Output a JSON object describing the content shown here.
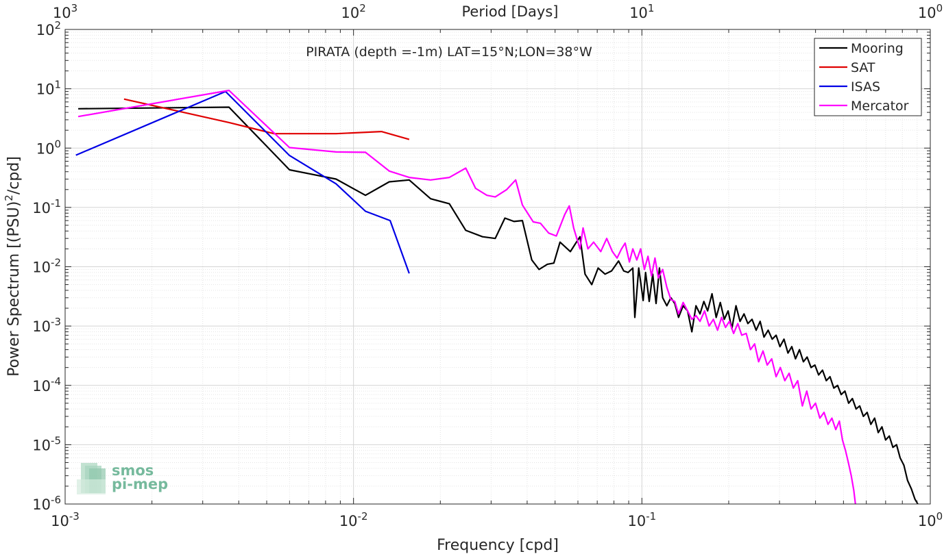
{
  "chart_data": {
    "type": "line",
    "title": "PIRATA (depth =-1m) LAT=15°N;LON=38°W",
    "xlabel": "Frequency [cpd]",
    "ylabel_main": "Power Spectrum [(PSU)",
    "ylabel_sup": "2",
    "ylabel_tail": "/cpd]",
    "x2label": "Period [Days]",
    "x_scale": "log",
    "y_scale": "log",
    "xlim": [
      0.001,
      1
    ],
    "ylim": [
      1e-06,
      100
    ],
    "grid": true,
    "legend_position": "top-right",
    "x_ticks": [
      {
        "value": 0.001,
        "base": "10",
        "exp": "-3"
      },
      {
        "value": 0.01,
        "base": "10",
        "exp": "-2"
      },
      {
        "value": 0.1,
        "base": "10",
        "exp": "-1"
      },
      {
        "value": 1,
        "base": "10",
        "exp": "0"
      }
    ],
    "y_ticks": [
      {
        "value": 1e-06,
        "base": "10",
        "exp": "-6"
      },
      {
        "value": 1e-05,
        "base": "10",
        "exp": "-5"
      },
      {
        "value": 0.0001,
        "base": "10",
        "exp": "-4"
      },
      {
        "value": 0.001,
        "base": "10",
        "exp": "-3"
      },
      {
        "value": 0.01,
        "base": "10",
        "exp": "-2"
      },
      {
        "value": 0.1,
        "base": "10",
        "exp": "-1"
      },
      {
        "value": 1,
        "base": "10",
        "exp": "0"
      },
      {
        "value": 10,
        "base": "10",
        "exp": "1"
      },
      {
        "value": 100,
        "base": "10",
        "exp": "2"
      }
    ],
    "x2_ticks": [
      {
        "value": 0.001,
        "base": "10",
        "exp": "3"
      },
      {
        "value": 0.01,
        "base": "10",
        "exp": "2"
      },
      {
        "value": 0.1,
        "base": "10",
        "exp": "1"
      },
      {
        "value": 1,
        "base": "10",
        "exp": "0"
      }
    ],
    "series": [
      {
        "name": "Mooring",
        "color": "#000000",
        "points": [
          [
            0.00111,
            4.6
          ],
          [
            0.0037,
            4.9
          ],
          [
            0.006,
            0.43
          ],
          [
            0.0087,
            0.3
          ],
          [
            0.011,
            0.16
          ],
          [
            0.0133,
            0.27
          ],
          [
            0.0156,
            0.29
          ],
          [
            0.0185,
            0.14
          ],
          [
            0.0215,
            0.115
          ],
          [
            0.0245,
            0.041
          ],
          [
            0.028,
            0.032
          ],
          [
            0.031,
            0.03
          ],
          [
            0.0335,
            0.066
          ],
          [
            0.036,
            0.058
          ],
          [
            0.0385,
            0.06
          ],
          [
            0.0415,
            0.013
          ],
          [
            0.044,
            0.009
          ],
          [
            0.047,
            0.011
          ],
          [
            0.0495,
            0.0115
          ],
          [
            0.052,
            0.026
          ],
          [
            0.0565,
            0.018
          ],
          [
            0.059,
            0.025
          ],
          [
            0.061,
            0.032
          ],
          [
            0.0635,
            0.0075
          ],
          [
            0.067,
            0.005
          ],
          [
            0.0705,
            0.0095
          ],
          [
            0.0745,
            0.0075
          ],
          [
            0.0785,
            0.0085
          ],
          [
            0.083,
            0.0125
          ],
          [
            0.0865,
            0.0085
          ],
          [
            0.0895,
            0.008
          ],
          [
            0.093,
            0.0095
          ],
          [
            0.0945,
            0.0014
          ],
          [
            0.0975,
            0.0095
          ],
          [
            0.101,
            0.0027
          ],
          [
            0.103,
            0.008
          ],
          [
            0.106,
            0.0026
          ],
          [
            0.109,
            0.0075
          ],
          [
            0.112,
            0.0024
          ],
          [
            0.115,
            0.0095
          ],
          [
            0.118,
            0.003
          ],
          [
            0.122,
            0.0022
          ],
          [
            0.126,
            0.003
          ],
          [
            0.13,
            0.0024
          ],
          [
            0.134,
            0.0014
          ],
          [
            0.139,
            0.0022
          ],
          [
            0.144,
            0.0018
          ],
          [
            0.149,
            0.0008
          ],
          [
            0.154,
            0.0022
          ],
          [
            0.159,
            0.0016
          ],
          [
            0.164,
            0.0026
          ],
          [
            0.169,
            0.0018
          ],
          [
            0.175,
            0.0035
          ],
          [
            0.181,
            0.0014
          ],
          [
            0.187,
            0.0025
          ],
          [
            0.193,
            0.0013
          ],
          [
            0.199,
            0.0018
          ],
          [
            0.205,
            0.0009
          ],
          [
            0.212,
            0.0022
          ],
          [
            0.219,
            0.0012
          ],
          [
            0.226,
            0.0016
          ],
          [
            0.233,
            0.0011
          ],
          [
            0.241,
            0.0013
          ],
          [
            0.249,
            0.00085
          ],
          [
            0.257,
            0.0012
          ],
          [
            0.265,
            0.00065
          ],
          [
            0.274,
            0.00085
          ],
          [
            0.283,
            0.0006
          ],
          [
            0.292,
            0.0007
          ],
          [
            0.301,
            0.00045
          ],
          [
            0.311,
            0.0006
          ],
          [
            0.321,
            0.00035
          ],
          [
            0.331,
            0.00045
          ],
          [
            0.341,
            0.00028
          ],
          [
            0.352,
            0.0004
          ],
          [
            0.363,
            0.00025
          ],
          [
            0.374,
            0.0003
          ],
          [
            0.386,
            0.0002
          ],
          [
            0.398,
            0.00022
          ],
          [
            0.41,
            0.00015
          ],
          [
            0.423,
            0.00018
          ],
          [
            0.436,
            0.00012
          ],
          [
            0.449,
            0.00014
          ],
          [
            0.463,
            9e-05
          ],
          [
            0.477,
            0.0001
          ],
          [
            0.491,
            7e-05
          ],
          [
            0.506,
            8e-05
          ],
          [
            0.521,
            5e-05
          ],
          [
            0.537,
            6e-05
          ],
          [
            0.553,
            4e-05
          ],
          [
            0.569,
            4.5e-05
          ],
          [
            0.586,
            3e-05
          ],
          [
            0.604,
            3.5e-05
          ],
          [
            0.622,
            2.2e-05
          ],
          [
            0.641,
            2.8e-05
          ],
          [
            0.66,
            1.6e-05
          ],
          [
            0.68,
            2e-05
          ],
          [
            0.7,
            1.2e-05
          ],
          [
            0.721,
            1.4e-05
          ],
          [
            0.742,
            9e-06
          ],
          [
            0.764,
            1e-05
          ],
          [
            0.786,
            6e-06
          ],
          [
            0.81,
            4.5e-06
          ],
          [
            0.834,
            2.5e-06
          ],
          [
            0.86,
            1.8e-06
          ],
          [
            0.885,
            1.2e-06
          ],
          [
            0.905,
            1e-06
          ]
        ]
      },
      {
        "name": "SAT",
        "color": "#e00000",
        "points": [
          [
            0.0016,
            6.7
          ],
          [
            0.0037,
            2.7
          ],
          [
            0.0053,
            1.75
          ],
          [
            0.0087,
            1.75
          ],
          [
            0.0125,
            1.9
          ],
          [
            0.0156,
            1.4
          ]
        ]
      },
      {
        "name": "ISAS",
        "color": "#0000e6",
        "points": [
          [
            0.00109,
            0.76
          ],
          [
            0.0036,
            9.0
          ],
          [
            0.006,
            0.75
          ],
          [
            0.0087,
            0.25
          ],
          [
            0.011,
            0.086
          ],
          [
            0.0134,
            0.06
          ],
          [
            0.0156,
            0.0077
          ]
        ]
      },
      {
        "name": "Mercator",
        "color": "#ff00ff",
        "points": [
          [
            0.00111,
            3.4
          ],
          [
            0.0037,
            9.4
          ],
          [
            0.006,
            1.02
          ],
          [
            0.0087,
            0.86
          ],
          [
            0.011,
            0.85
          ],
          [
            0.0133,
            0.41
          ],
          [
            0.0156,
            0.32
          ],
          [
            0.0185,
            0.29
          ],
          [
            0.0215,
            0.32
          ],
          [
            0.0245,
            0.46
          ],
          [
            0.0265,
            0.21
          ],
          [
            0.029,
            0.16
          ],
          [
            0.031,
            0.15
          ],
          [
            0.034,
            0.2
          ],
          [
            0.0365,
            0.29
          ],
          [
            0.0385,
            0.11
          ],
          [
            0.042,
            0.057
          ],
          [
            0.0445,
            0.054
          ],
          [
            0.0475,
            0.037
          ],
          [
            0.0505,
            0.033
          ],
          [
            0.054,
            0.076
          ],
          [
            0.056,
            0.106
          ],
          [
            0.058,
            0.045
          ],
          [
            0.061,
            0.02
          ],
          [
            0.0625,
            0.045
          ],
          [
            0.065,
            0.02
          ],
          [
            0.068,
            0.026
          ],
          [
            0.072,
            0.018
          ],
          [
            0.0755,
            0.03
          ],
          [
            0.079,
            0.018
          ],
          [
            0.082,
            0.014
          ],
          [
            0.085,
            0.02
          ],
          [
            0.0875,
            0.025
          ],
          [
            0.0905,
            0.012
          ],
          [
            0.093,
            0.02
          ],
          [
            0.096,
            0.013
          ],
          [
            0.099,
            0.02
          ],
          [
            0.102,
            0.009
          ],
          [
            0.105,
            0.015
          ],
          [
            0.108,
            0.007
          ],
          [
            0.111,
            0.014
          ],
          [
            0.114,
            0.0065
          ],
          [
            0.118,
            0.009
          ],
          [
            0.122,
            0.0045
          ],
          [
            0.126,
            0.0028
          ],
          [
            0.13,
            0.0026
          ],
          [
            0.134,
            0.0016
          ],
          [
            0.139,
            0.0025
          ],
          [
            0.144,
            0.0018
          ],
          [
            0.149,
            0.0013
          ],
          [
            0.154,
            0.0015
          ],
          [
            0.159,
            0.0012
          ],
          [
            0.165,
            0.0018
          ],
          [
            0.171,
            0.001
          ],
          [
            0.177,
            0.0013
          ],
          [
            0.183,
            0.00085
          ],
          [
            0.189,
            0.0014
          ],
          [
            0.195,
            0.00095
          ],
          [
            0.201,
            0.0012
          ],
          [
            0.208,
            0.00075
          ],
          [
            0.215,
            0.0011
          ],
          [
            0.222,
            0.0007
          ],
          [
            0.23,
            0.00075
          ],
          [
            0.238,
            0.0004
          ],
          [
            0.246,
            0.0005
          ],
          [
            0.254,
            0.00025
          ],
          [
            0.263,
            0.00038
          ],
          [
            0.272,
            0.00022
          ],
          [
            0.282,
            0.00028
          ],
          [
            0.292,
            0.00014
          ],
          [
            0.302,
            0.0002
          ],
          [
            0.313,
            0.00012
          ],
          [
            0.324,
            0.00016
          ],
          [
            0.335,
            9e-05
          ],
          [
            0.347,
            0.00012
          ],
          [
            0.36,
            4.5e-05
          ],
          [
            0.373,
            8e-05
          ],
          [
            0.386,
            4e-05
          ],
          [
            0.4,
            5e-05
          ],
          [
            0.414,
            2.8e-05
          ],
          [
            0.428,
            3.5e-05
          ],
          [
            0.442,
            2.2e-05
          ],
          [
            0.456,
            2.8e-05
          ],
          [
            0.47,
            1.8e-05
          ],
          [
            0.484,
            2.5e-05
          ],
          [
            0.496,
            1.2e-05
          ],
          [
            0.508,
            8e-06
          ],
          [
            0.52,
            5e-06
          ],
          [
            0.532,
            3e-06
          ],
          [
            0.543,
            1.7e-06
          ],
          [
            0.55,
            1e-06
          ]
        ]
      }
    ]
  },
  "watermark": {
    "line1": "smos",
    "line2": "pi-mep",
    "color": "#5fae8c"
  }
}
